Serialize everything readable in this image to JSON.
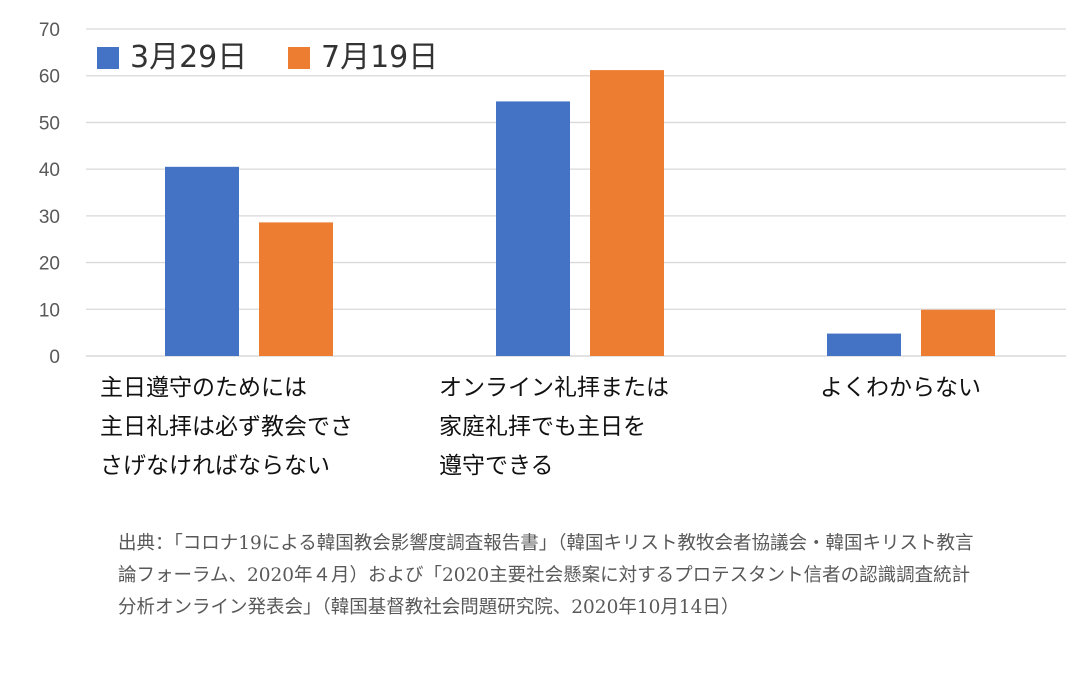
{
  "chart_data": {
    "type": "bar",
    "categories": [
      [
        "主日遵守のためには",
        "主日礼拝は必ず教会でさ",
        "さげなければならない"
      ],
      [
        "オンライン礼拝または",
        "家庭礼拝でも主日を",
        "遵守できる"
      ],
      [
        "よくわからない"
      ]
    ],
    "series": [
      {
        "name": "3月29日",
        "color": "#4472C4",
        "values": [
          40.5,
          54.5,
          4.8
        ]
      },
      {
        "name": "7月19日",
        "color": "#ED7D31",
        "values": [
          28.6,
          61.2,
          9.9
        ]
      }
    ],
    "ylim": [
      0,
      70
    ],
    "yticks": [
      "0",
      "10",
      "20",
      "30",
      "40",
      "50",
      "60",
      "70"
    ],
    "grid": true,
    "legend_position": "top-left"
  },
  "source_note": "出典：「コロナ19による韓国教会影響度調査報告書」（韓国キリスト教牧会者協議会・韓国キリスト教言論フォーラム、2020年４月）および「2020主要社会懸案に対するプロテスタント信者の認識調査統計分析オンライン発表会」（韓国基督教社会問題研究院、2020年10月14日）"
}
